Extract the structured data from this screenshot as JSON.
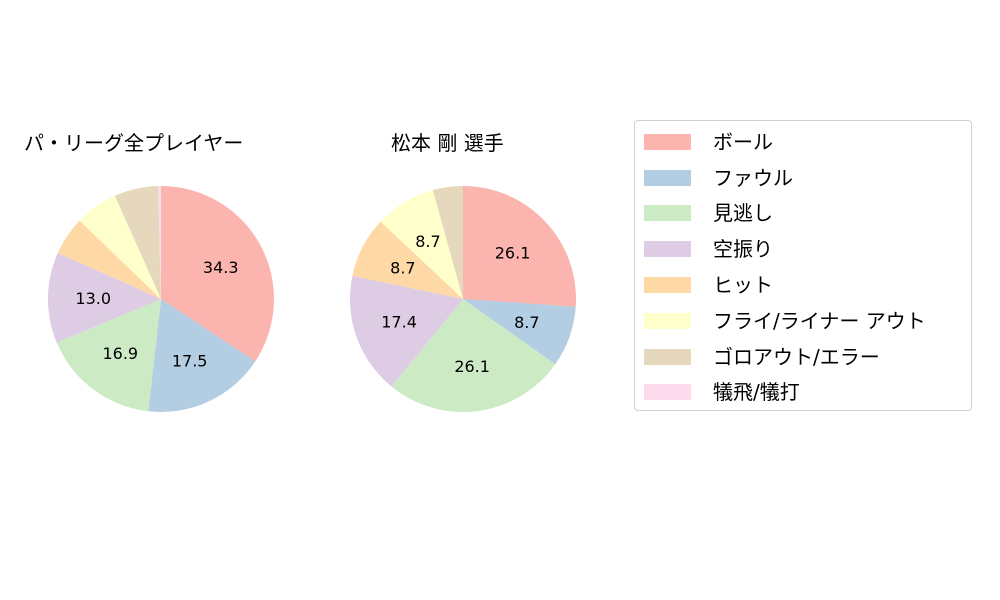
{
  "chart_data": [
    {
      "type": "pie",
      "title": "パ・リーグ全プレイヤー",
      "categories": [
        "ボール",
        "ファウル",
        "見逃し",
        "空振り",
        "ヒット",
        "フライ/ライナー アウト",
        "ゴロアウト/エラー",
        "犠飛/犠打"
      ],
      "values": [
        34.3,
        17.5,
        16.9,
        13.0,
        5.5,
        6.1,
        6.3,
        0.4
      ],
      "labels_shown": [
        "34.3",
        "17.5",
        "16.9",
        "13.0",
        "",
        "",
        "",
        ""
      ],
      "center": [
        161,
        299
      ],
      "radius": 113
    },
    {
      "type": "pie",
      "title": "松本 剛  選手",
      "categories": [
        "ボール",
        "ファウル",
        "見逃し",
        "空振り",
        "ヒット",
        "フライ/ライナー アウト",
        "ゴロアウト/エラー",
        "犠飛/犠打"
      ],
      "values": [
        26.1,
        8.7,
        26.1,
        17.4,
        8.7,
        8.7,
        4.3,
        0.0
      ],
      "labels_shown": [
        "26.1",
        "8.7",
        "26.1",
        "17.4",
        "8.7",
        "8.7",
        "",
        ""
      ],
      "center": [
        463,
        299
      ],
      "radius": 113
    }
  ],
  "colors": [
    "#fbb4ae",
    "#b3cde3",
    "#ccebc5",
    "#decbe4",
    "#fed9a6",
    "#ffffcc",
    "#e5d8bd",
    "#fddaec"
  ],
  "titles": {
    "left": "パ・リーグ全プレイヤー",
    "right": "松本 剛  選手"
  },
  "legend": {
    "items": [
      {
        "label": "ボール",
        "color": "#fbb4ae"
      },
      {
        "label": "ファウル",
        "color": "#b3cde3"
      },
      {
        "label": "見逃し",
        "color": "#ccebc5"
      },
      {
        "label": "空振り",
        "color": "#decbe4"
      },
      {
        "label": "ヒット",
        "color": "#fed9a6"
      },
      {
        "label": "フライ/ライナー アウト",
        "color": "#ffffcc"
      },
      {
        "label": "ゴロアウト/エラー",
        "color": "#e5d8bd"
      },
      {
        "label": "犠飛/犠打",
        "color": "#fddaec"
      }
    ]
  }
}
